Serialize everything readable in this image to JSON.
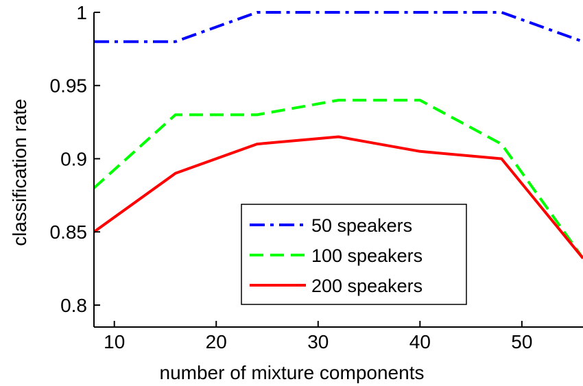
{
  "chart_data": {
    "type": "line",
    "title": "",
    "xlabel": "number of mixture components",
    "ylabel": "classification rate",
    "xlim": [
      8,
      56
    ],
    "ylim": [
      0.785,
      1.0
    ],
    "x": [
      8,
      16,
      24,
      32,
      40,
      48,
      56
    ],
    "xticks": [
      10,
      20,
      30,
      40,
      50
    ],
    "xtick_labels": [
      "10",
      "20",
      "30",
      "40",
      "50"
    ],
    "yticks": [
      0.8,
      0.85,
      0.9,
      0.95,
      1.0
    ],
    "ytick_labels": [
      "0.8",
      "0.85",
      "0.9",
      "0.95",
      "1"
    ],
    "grid": false,
    "legend_position": "lower-center",
    "series": [
      {
        "name": "50 speakers",
        "values": [
          0.98,
          0.98,
          1.0,
          1.0,
          1.0,
          1.0,
          0.98
        ],
        "color": "#0000ff",
        "style": "dash-dot"
      },
      {
        "name": "100 speakers",
        "values": [
          0.88,
          0.93,
          0.93,
          0.94,
          0.94,
          0.91,
          0.832
        ],
        "color": "#00ff00",
        "style": "dashed"
      },
      {
        "name": "200 speakers",
        "values": [
          0.85,
          0.89,
          0.91,
          0.915,
          0.905,
          0.9,
          0.832
        ],
        "color": "#ff0000",
        "style": "solid"
      }
    ]
  }
}
